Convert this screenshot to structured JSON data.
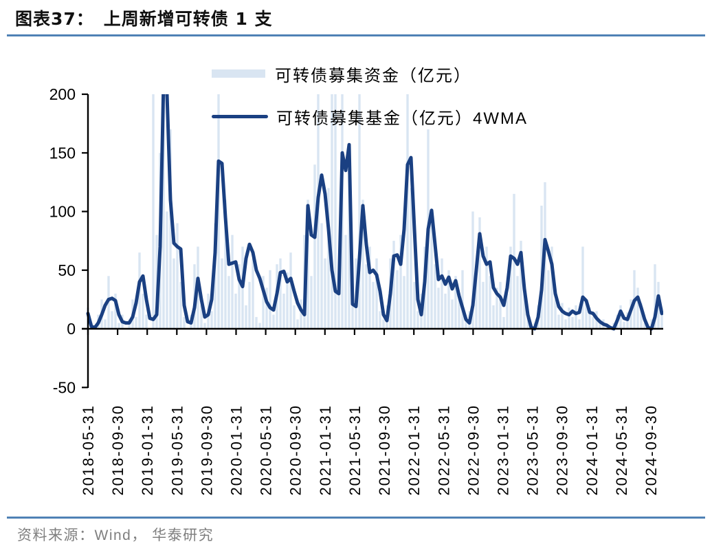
{
  "header": {
    "label": "图表37：",
    "title": "上周新增可转债 1 支"
  },
  "footer": {
    "source": "资料来源：Wind， 华泰研究"
  },
  "colors": {
    "accent_rule": "#4F81B5",
    "line": "#1A4082",
    "bar_fill": "#D9E5F2",
    "axis": "#000000",
    "footer_text": "#7F7F7F"
  },
  "chart_data": {
    "type": "bar",
    "subtype": "weekly bars with 4-week moving average line, values above 200 clipped at axis top",
    "title": "上周新增可转债 1 支",
    "xlabel": "",
    "ylabel": "",
    "unit": "亿元",
    "ylim": [
      -50,
      200
    ],
    "y_ticks": [
      200,
      150,
      100,
      50,
      0,
      -50
    ],
    "grid": false,
    "legend_position": "top-center-inside",
    "x_tick_labels": [
      "2018-05-31",
      "2018-09-30",
      "2019-01-31",
      "2019-05-31",
      "2019-09-30",
      "2020-01-31",
      "2020-05-31",
      "2020-09-30",
      "2021-01-31",
      "2021-05-31",
      "2021-09-30",
      "2022-01-31",
      "2022-05-31",
      "2022-09-30",
      "2023-01-31",
      "2023-05-31",
      "2023-09-30",
      "2024-01-31",
      "2024-05-31",
      "2024-09-30"
    ],
    "series": [
      {
        "name": "可转债募集资金（亿元）",
        "type": "bar",
        "color": "#D9E5F2",
        "clipped_at": 200,
        "values": [
          18,
          5,
          0,
          12,
          25,
          8,
          45,
          15,
          30,
          5,
          12,
          0,
          8,
          25,
          10,
          65,
          30,
          12,
          0,
          200,
          80,
          150,
          200,
          100,
          170,
          60,
          90,
          40,
          10,
          0,
          12,
          55,
          70,
          20,
          5,
          30,
          15,
          90,
          200,
          60,
          110,
          45,
          80,
          30,
          55,
          70,
          20,
          40,
          60,
          10,
          5,
          45,
          35,
          50,
          12,
          55,
          60,
          30,
          48,
          65,
          20,
          8,
          25,
          80,
          110,
          45,
          140,
          200,
          90,
          60,
          120,
          200,
          200,
          30,
          200,
          80,
          130,
          25,
          60,
          200,
          110,
          55,
          70,
          40,
          60,
          15,
          8,
          20,
          60,
          75,
          50,
          80,
          45,
          200,
          120,
          40,
          15,
          30,
          70,
          170,
          95,
          55,
          35,
          60,
          30,
          50,
          25,
          45,
          30,
          50,
          10,
          15,
          100,
          50,
          95,
          40,
          70,
          45,
          20,
          35,
          40,
          10,
          30,
          70,
          115,
          45,
          75,
          30,
          10,
          0,
          5,
          20,
          105,
          125,
          50,
          70,
          25,
          12,
          22,
          8,
          18,
          10,
          20,
          8,
          70,
          25,
          18,
          10,
          15,
          5,
          8,
          3,
          0,
          5,
          12,
          20,
          6,
          14,
          25,
          50,
          35,
          22,
          5,
          0,
          8,
          55,
          40,
          18
        ]
      },
      {
        "name": "可转债募集基金（亿元）4WMA",
        "type": "line",
        "color": "#1A4082",
        "values": [
          13,
          2,
          1,
          5,
          12,
          20,
          25,
          26,
          24,
          12,
          6,
          5,
          5,
          10,
          22,
          40,
          45,
          25,
          9,
          8,
          12,
          70,
          210,
          200,
          110,
          73,
          70,
          68,
          20,
          6,
          5,
          18,
          43,
          25,
          10,
          12,
          25,
          65,
          143,
          141,
          95,
          55,
          56,
          57,
          42,
          36,
          60,
          72,
          65,
          50,
          43,
          33,
          23,
          18,
          16,
          30,
          48,
          49,
          40,
          43,
          32,
          22,
          16,
          12,
          105,
          80,
          78,
          112,
          131,
          115,
          85,
          50,
          32,
          30,
          150,
          135,
          157,
          21,
          19,
          60,
          105,
          72,
          48,
          50,
          46,
          32,
          12,
          7,
          30,
          62,
          63,
          55,
          85,
          140,
          146,
          85,
          25,
          12,
          40,
          85,
          101,
          72,
          42,
          45,
          38,
          44,
          34,
          41,
          28,
          18,
          8,
          5,
          20,
          50,
          81,
          62,
          55,
          57,
          35,
          30,
          27,
          20,
          35,
          62,
          60,
          55,
          65,
          34,
          12,
          1,
          0,
          10,
          33,
          76,
          66,
          55,
          30,
          19,
          15,
          13,
          12,
          15,
          13,
          14,
          27,
          24,
          14,
          13,
          9,
          6,
          4,
          3,
          1,
          0,
          7,
          15,
          9,
          8,
          16,
          24,
          27,
          18,
          8,
          1,
          0,
          10,
          28,
          13
        ]
      }
    ]
  }
}
